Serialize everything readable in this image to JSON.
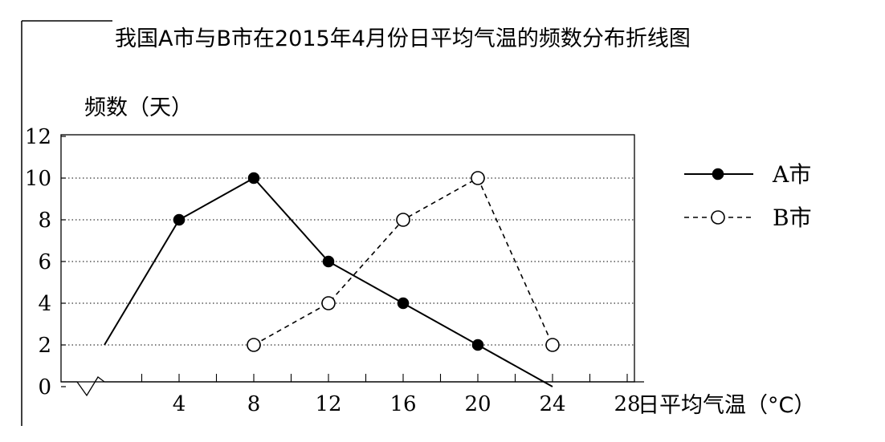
{
  "chart_data": {
    "type": "line",
    "title": "我国A市与B市在2015年4月份日平均气温的频数分布折线图",
    "ylabel": "频数（天）",
    "xlabel": "日平均气温（°C）",
    "x_ticks": [
      4,
      8,
      12,
      16,
      20,
      24,
      28
    ],
    "y_ticks": [
      0,
      2,
      4,
      6,
      8,
      10,
      12
    ],
    "xlim": [
      0,
      30
    ],
    "ylim": [
      0,
      12
    ],
    "grid": "horizontal dotted",
    "axis_break": true,
    "legend_position": "right",
    "series": [
      {
        "name": "A市",
        "style": "solid",
        "marker": "filled-circle",
        "color": "#000000",
        "points": [
          {
            "x": 0,
            "y": 2,
            "marker": false
          },
          {
            "x": 4,
            "y": 8,
            "marker": true
          },
          {
            "x": 8,
            "y": 10,
            "marker": true
          },
          {
            "x": 12,
            "y": 6,
            "marker": true
          },
          {
            "x": 16,
            "y": 4,
            "marker": true
          },
          {
            "x": 20,
            "y": 2,
            "marker": true
          },
          {
            "x": 24,
            "y": 0,
            "marker": false
          }
        ]
      },
      {
        "name": "B市",
        "style": "dashed",
        "marker": "open-circle",
        "color": "#000000",
        "points": [
          {
            "x": 8,
            "y": 2,
            "marker": true
          },
          {
            "x": 12,
            "y": 4,
            "marker": true
          },
          {
            "x": 16,
            "y": 8,
            "marker": true
          },
          {
            "x": 20,
            "y": 10,
            "marker": true
          },
          {
            "x": 24,
            "y": 2,
            "marker": true
          }
        ]
      }
    ]
  }
}
